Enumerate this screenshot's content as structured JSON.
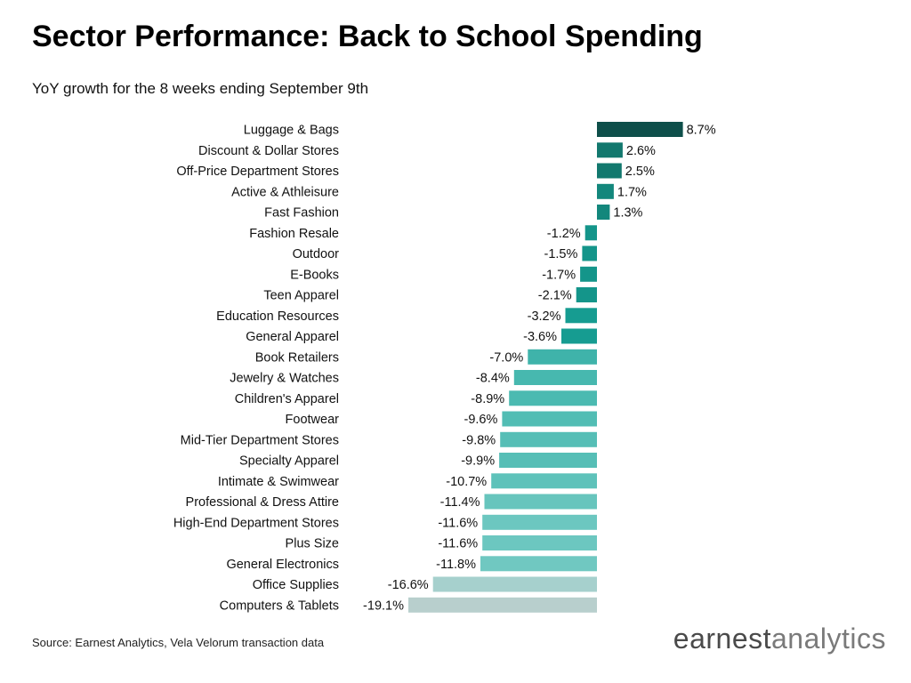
{
  "header": {
    "title": "Sector Performance: Back to School Spending",
    "subtitle": "YoY growth for the 8 weeks ending September 9th"
  },
  "footer": {
    "source": "Source: Earnest Analytics, Vela Velorum transaction data",
    "logo_part1": "earnest",
    "logo_part2": "analytics"
  },
  "chart_data": {
    "type": "bar",
    "orientation": "horizontal",
    "title": "Sector Performance: Back to School Spending",
    "subtitle": "YoY growth for the 8 weeks ending September 9th",
    "xlabel": "",
    "ylabel": "",
    "unit": "%",
    "grid": false,
    "categories": [
      "Luggage & Bags",
      "Discount & Dollar Stores",
      "Off-Price Department Stores",
      "Active & Athleisure",
      "Fast Fashion",
      "Fashion Resale",
      "Outdoor",
      "E-Books",
      "Teen Apparel",
      "Education Resources",
      "General Apparel",
      "Book Retailers",
      "Jewelry & Watches",
      "Children's Apparel",
      "Footwear",
      "Mid-Tier Department Stores",
      "Specialty Apparel",
      "Intimate & Swimwear",
      "Professional & Dress Attire",
      "High-End Department Stores",
      "Plus Size",
      "General Electronics",
      "Office Supplies",
      "Computers & Tablets"
    ],
    "values": [
      8.7,
      2.6,
      2.5,
      1.7,
      1.3,
      -1.2,
      -1.5,
      -1.7,
      -2.1,
      -3.2,
      -3.6,
      -7.0,
      -8.4,
      -8.9,
      -9.6,
      -9.8,
      -9.9,
      -10.7,
      -11.4,
      -11.6,
      -11.6,
      -11.8,
      -16.6,
      -19.1
    ],
    "labels": [
      "8.7%",
      "2.6%",
      "2.5%",
      "1.7%",
      "1.3%",
      "-1.2%",
      "-1.5%",
      "-1.7%",
      "-2.1%",
      "-3.2%",
      "-3.6%",
      "-7.0%",
      "-8.4%",
      "-8.9%",
      "-9.6%",
      "-9.8%",
      "-9.9%",
      "-10.7%",
      "-11.4%",
      "-11.6%",
      "-11.6%",
      "-11.8%",
      "-16.6%",
      "-19.1%"
    ],
    "colors": [
      "#0e4f4a",
      "#12786e",
      "#12786e",
      "#13877c",
      "#13877c",
      "#14958a",
      "#14958a",
      "#14958a",
      "#14958a",
      "#169c91",
      "#169c91",
      "#3fb3aa",
      "#47b8af",
      "#4bbab1",
      "#52bdb4",
      "#56beb6",
      "#56beb6",
      "#5ec2ba",
      "#67c5bd",
      "#6cc7c0",
      "#6cc7c0",
      "#70c8c1",
      "#a6d0cd",
      "#b8cfcd"
    ]
  }
}
